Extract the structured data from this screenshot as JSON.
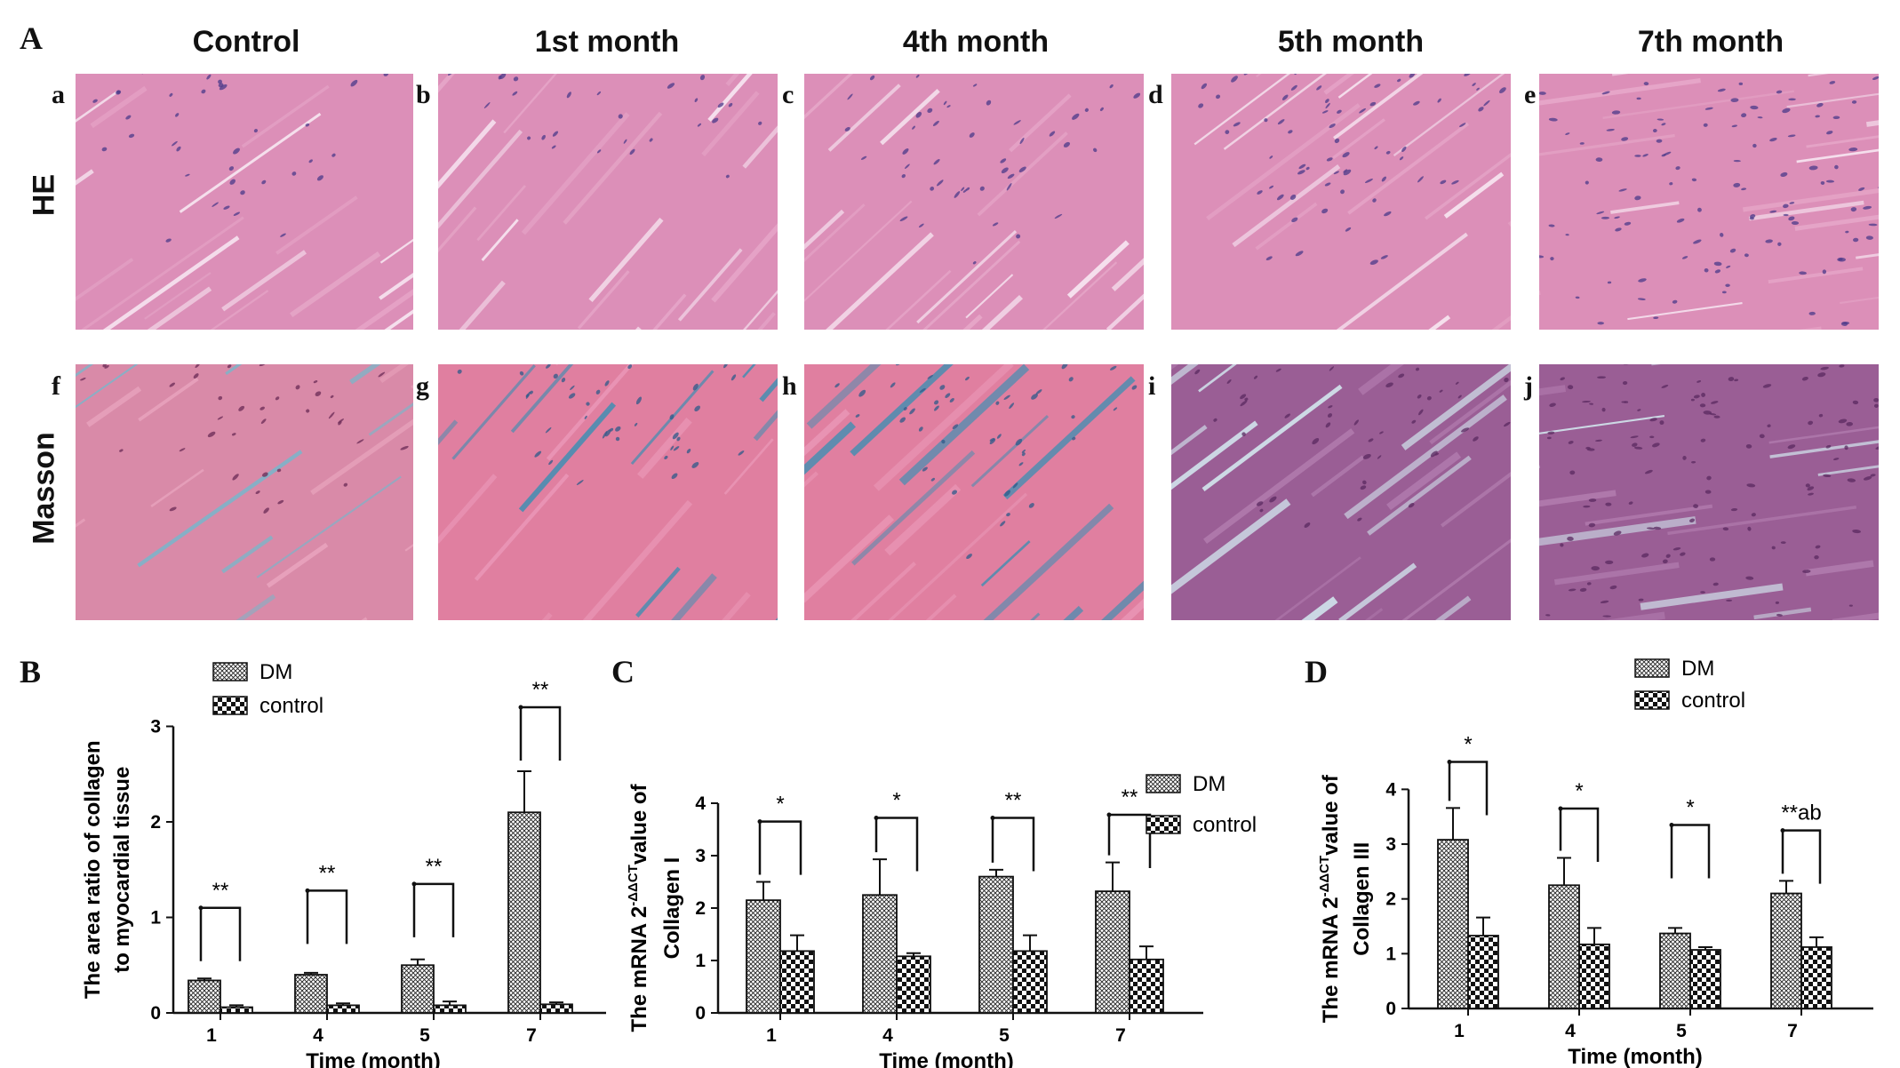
{
  "panel_A": {
    "letter": "A",
    "columns": [
      "Control",
      "1st month",
      "4th month",
      "5th month",
      "7th month"
    ],
    "rows": [
      "HE",
      "Masson"
    ],
    "sub_letters": [
      "a",
      "b",
      "c",
      "d",
      "e",
      "f",
      "g",
      "h",
      "i",
      "j"
    ],
    "colors": {
      "he_pink": "#dc8fb8",
      "he_nuclei": "#4b3a8a",
      "masson_red": "#d98aa8",
      "masson_blue": "#7fb3c8",
      "masson_purple": "#9a5e95"
    }
  },
  "chart_data": [
    {
      "panel": "B",
      "type": "bar",
      "categories": [
        "1",
        "4",
        "5",
        "7"
      ],
      "xlabel": "Time (month)",
      "ylabel_line1": "The area ratio of collagen",
      "ylabel_line2": "to myocardial tissue",
      "ylim": [
        0,
        3
      ],
      "yticks": [
        "0",
        "1",
        "2",
        "3"
      ],
      "series": [
        {
          "name": "DM",
          "values": [
            0.34,
            0.4,
            0.5,
            2.1
          ],
          "errors": [
            0.02,
            0.02,
            0.06,
            0.43
          ]
        },
        {
          "name": "control",
          "values": [
            0.06,
            0.08,
            0.08,
            0.09
          ],
          "errors": [
            0.02,
            0.02,
            0.04,
            0.02
          ]
        }
      ],
      "significance": [
        "**",
        "**",
        "**",
        "**"
      ],
      "bracket_heights": [
        1.1,
        1.28,
        1.35,
        3.2
      ],
      "legend": "top-left"
    },
    {
      "panel": "C",
      "type": "bar",
      "categories": [
        "1",
        "4",
        "5",
        "7"
      ],
      "xlabel": "Time (month)",
      "ylabel_line1": "The mRNA 2",
      "ylabel_sup": "-ΔΔCT",
      "ylabel_line1_end": "value of",
      "ylabel_line2": "Collagen I",
      "ylim": [
        0,
        4
      ],
      "yticks": [
        "0",
        "1",
        "2",
        "3",
        "4"
      ],
      "series": [
        {
          "name": "DM",
          "values": [
            2.15,
            2.25,
            2.6,
            2.32
          ],
          "errors": [
            0.35,
            0.68,
            0.13,
            0.55
          ]
        },
        {
          "name": "control",
          "values": [
            1.18,
            1.08,
            1.18,
            1.02
          ],
          "errors": [
            0.3,
            0.06,
            0.3,
            0.25
          ]
        }
      ],
      "significance": [
        "*",
        "*",
        "**",
        "**"
      ],
      "bracket_heights": [
        3.65,
        3.72,
        3.72,
        3.78
      ],
      "legend": "right"
    },
    {
      "panel": "D",
      "type": "bar",
      "categories": [
        "1",
        "4",
        "5",
        "7"
      ],
      "xlabel": "Time (month)",
      "ylabel_line1": "The mRNA 2",
      "ylabel_sup": "-ΔΔCT",
      "ylabel_line1_end": "value of",
      "ylabel_line2": "Collagen III",
      "ylim": [
        0,
        4
      ],
      "yticks": [
        "0",
        "1",
        "2",
        "3",
        "4"
      ],
      "series": [
        {
          "name": "DM",
          "values": [
            3.08,
            2.25,
            1.37,
            2.1
          ],
          "errors": [
            0.58,
            0.5,
            0.1,
            0.23
          ]
        },
        {
          "name": "control",
          "values": [
            1.33,
            1.17,
            1.07,
            1.12
          ],
          "errors": [
            0.33,
            0.3,
            0.05,
            0.18
          ]
        }
      ],
      "significance": [
        "*",
        "*",
        "*",
        "**ab"
      ],
      "bracket_heights": [
        4.5,
        3.65,
        3.35,
        3.25
      ],
      "legend": "top-right"
    }
  ]
}
